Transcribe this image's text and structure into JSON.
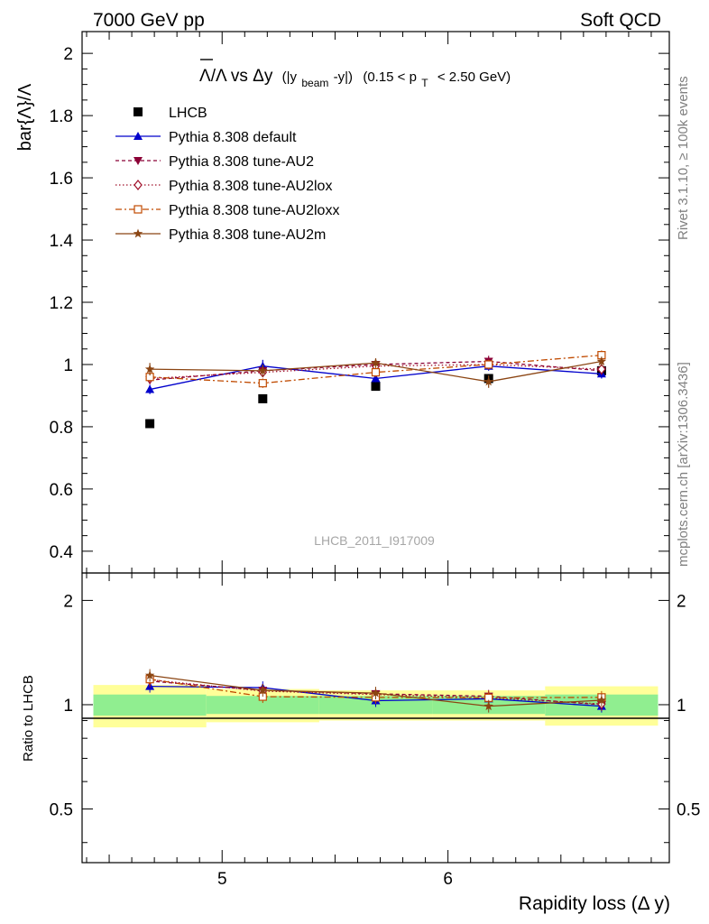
{
  "header": {
    "left": "7000 GeV pp",
    "right": "Soft QCD"
  },
  "side": {
    "rivet": "Rivet 3.1.10, ≥ 100k events",
    "mcplots": "mcplots.cern.ch [arXiv:1306.3436]"
  },
  "watermark": "LHCB_2011_I917009",
  "plot_title": {
    "lead": "Λ/Λ vs Δy",
    "paren": "(|y",
    "sub1": "beam",
    "paren2": "-y|)",
    "range": "(0.15 < p",
    "sub2": "T",
    "range2": "< 2.50 GeV)"
  },
  "colors": {
    "data": "#000000",
    "default": "#0000cc",
    "au2": "#8b0036",
    "au2lox": "#a0102a",
    "au2loxx": "#c04a00",
    "au2m": "#8b4513",
    "band_outer": "#ffff99",
    "band_inner": "#90ee90"
  },
  "chart_data": [
    {
      "type": "scatter",
      "ylabel": "bar{Λ}/Λ",
      "xlim": [
        4.38,
        6.98
      ],
      "ylim": [
        0.33,
        2.07
      ],
      "yticks": [
        0.4,
        0.6,
        0.8,
        1.0,
        1.2,
        1.4,
        1.6,
        1.8,
        2.0
      ],
      "ytick_labels": [
        "0.4",
        "0.6",
        "0.8",
        "1",
        "1.2",
        "1.4",
        "1.6",
        "1.8",
        "2"
      ],
      "x": [
        4.68,
        5.18,
        5.68,
        6.18,
        6.68
      ],
      "series": [
        {
          "name": "LHCB",
          "style": "data",
          "marker": "square",
          "values": [
            0.81,
            0.89,
            0.93,
            0.955,
            0.98
          ],
          "errors": [
            0.004,
            0.004,
            0.004,
            0.005,
            0.005
          ]
        },
        {
          "name": "Pythia 8.308 default",
          "style": "solid",
          "marker": "triangle-up",
          "values": [
            0.92,
            0.995,
            0.955,
            0.995,
            0.97
          ],
          "errors": [
            0.015,
            0.02,
            0.012,
            0.015,
            0.015
          ]
        },
        {
          "name": "Pythia 8.308 tune-AU2",
          "style": "dashed",
          "marker": "triangle-down",
          "values": [
            0.95,
            0.98,
            1.0,
            1.01,
            0.98
          ],
          "errors": [
            0.012,
            0.015,
            0.015,
            0.018,
            0.012
          ]
        },
        {
          "name": "Pythia 8.308 tune-AU2lox",
          "style": "dotted",
          "marker": "diamond-open",
          "values": [
            0.955,
            0.975,
            0.995,
            1.0,
            0.985
          ],
          "errors": [
            0.012,
            0.015,
            0.015,
            0.015,
            0.012
          ]
        },
        {
          "name": "Pythia 8.308 tune-AU2loxx",
          "style": "dashdot",
          "marker": "square-open",
          "values": [
            0.96,
            0.94,
            0.975,
            1.0,
            1.03
          ],
          "errors": [
            0.015,
            0.015,
            0.015,
            0.015,
            0.015
          ]
        },
        {
          "name": "Pythia 8.308 tune-AU2m",
          "style": "solid",
          "marker": "star",
          "values": [
            0.985,
            0.98,
            1.005,
            0.945,
            1.01
          ],
          "errors": [
            0.02,
            0.02,
            0.015,
            0.02,
            0.015
          ]
        }
      ]
    },
    {
      "type": "scatter",
      "ylabel": "Ratio to LHCB",
      "xlabel": "Rapidity loss (Δ y)",
      "xlim": [
        4.38,
        6.98
      ],
      "ylim": [
        0.35,
        2.4
      ],
      "log_y": true,
      "yticks": [
        0.5,
        1,
        2
      ],
      "ytick_labels": [
        "0.5",
        "1",
        "2"
      ],
      "xticks": [
        5,
        6
      ],
      "xtick_labels": [
        "5",
        "6"
      ],
      "x": [
        4.68,
        5.18,
        5.68,
        6.18,
        6.68
      ],
      "band_bins": [
        [
          4.43,
          4.93
        ],
        [
          4.93,
          5.43
        ],
        [
          5.43,
          5.93
        ],
        [
          5.93,
          6.43
        ],
        [
          6.43,
          6.93
        ]
      ],
      "band_outer": [
        0.14,
        0.11,
        0.1,
        0.1,
        0.13
      ],
      "band_inner": [
        0.07,
        0.06,
        0.06,
        0.06,
        0.07
      ],
      "series": [
        {
          "name": "Pythia 8.308 default",
          "style": "solid",
          "marker": "triangle-up",
          "values": [
            1.13,
            1.12,
            1.027,
            1.04,
            0.99
          ]
        },
        {
          "name": "Pythia 8.308 tune-AU2",
          "style": "dashed",
          "marker": "triangle-down",
          "values": [
            1.17,
            1.1,
            1.075,
            1.058,
            1.0
          ]
        },
        {
          "name": "Pythia 8.308 tune-AU2lox",
          "style": "dotted",
          "marker": "diamond-open",
          "values": [
            1.18,
            1.095,
            1.07,
            1.047,
            1.005
          ]
        },
        {
          "name": "Pythia 8.308 tune-AU2loxx",
          "style": "dashdot",
          "marker": "square-open",
          "values": [
            1.185,
            1.055,
            1.05,
            1.047,
            1.05
          ]
        },
        {
          "name": "Pythia 8.308 tune-AU2m",
          "style": "solid",
          "marker": "star",
          "values": [
            1.215,
            1.1,
            1.08,
            0.99,
            1.03
          ]
        }
      ]
    }
  ]
}
